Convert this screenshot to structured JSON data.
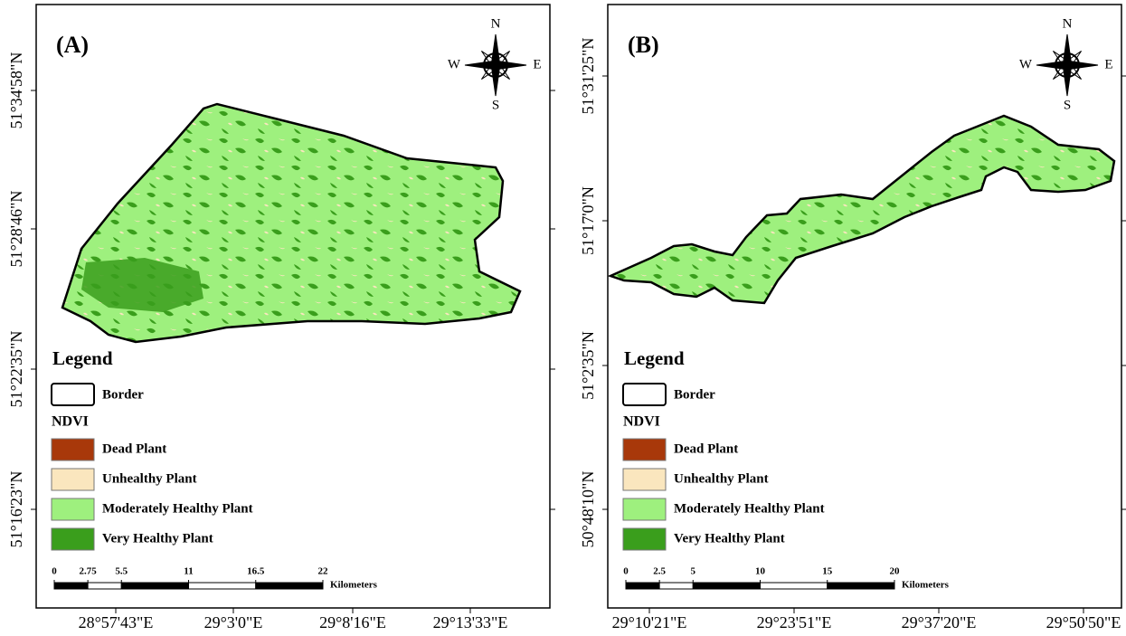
{
  "panels": [
    {
      "label": "(A)",
      "y_labels": [
        "51°34'58\"N",
        "51°28'46\"N",
        "51°22'35\"N",
        "51°16'23\"N"
      ],
      "x_labels": [
        "28°57'43\"E",
        "29°3'0\"E",
        "29°8'16\"E",
        "29°13'33\"E"
      ],
      "compass": {
        "n": "N",
        "s": "S",
        "e": "E",
        "w": "W"
      },
      "legend": {
        "title": "Legend",
        "border": "Border",
        "group": "NDVI",
        "classes": [
          {
            "name": "Dead Plant",
            "color": "#a8380a"
          },
          {
            "name": "Unhealthy Plant",
            "color": "#fae6be"
          },
          {
            "name": "Moderately Healthy Plant",
            "color": "#9ef07e"
          },
          {
            "name": "Very Healthy Plant",
            "color": "#3a9e1c"
          }
        ]
      },
      "scale": {
        "ticks": [
          0,
          2.75,
          5.5,
          11,
          16.5,
          22
        ],
        "unit": "Kilometers"
      }
    },
    {
      "label": "(B)",
      "y_labels": [
        "51°31'25\"N",
        "51°17'0\"N",
        "51°2'35\"N",
        "50°48'10\"N"
      ],
      "x_labels": [
        "29°10'21\"E",
        "29°23'51\"E",
        "29°37'20\"E",
        "29°50'50\"E"
      ],
      "compass": {
        "n": "N",
        "s": "S",
        "e": "E",
        "w": "W"
      },
      "legend": {
        "title": "Legend",
        "border": "Border",
        "group": "NDVI",
        "classes": [
          {
            "name": "Dead Plant",
            "color": "#a8380a"
          },
          {
            "name": "Unhealthy Plant",
            "color": "#fae6be"
          },
          {
            "name": "Moderately Healthy Plant",
            "color": "#9ef07e"
          },
          {
            "name": "Very Healthy Plant",
            "color": "#3a9e1c"
          }
        ]
      },
      "scale": {
        "ticks": [
          0,
          2.5,
          5,
          10,
          15,
          20
        ],
        "unit": "Kilometers"
      }
    }
  ]
}
